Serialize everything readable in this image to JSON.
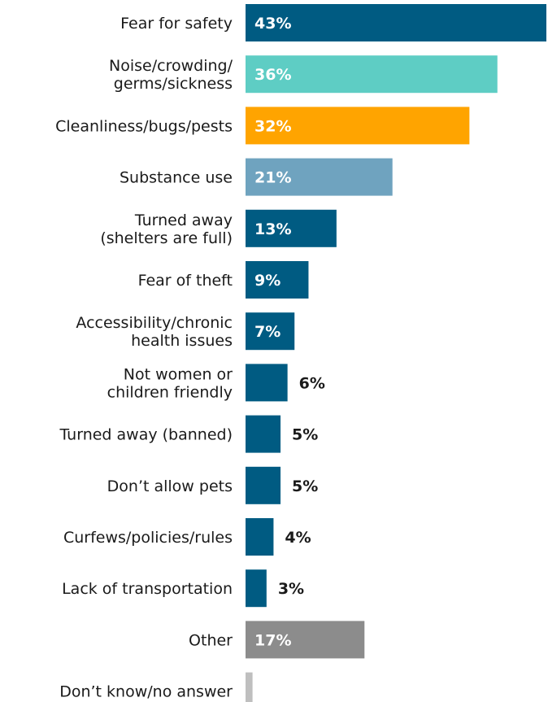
{
  "chart_data": {
    "type": "bar",
    "orientation": "horizontal",
    "title": "",
    "xlabel": "",
    "ylabel": "",
    "grid": false,
    "xlim": [
      0,
      43
    ],
    "categories": [
      "Fear for safety",
      "Noise/crowding/\ngerms/sickness",
      "Cleanliness/bugs/pests",
      "Substance use",
      "Turned away\n(shelters are full)",
      "Fear of theft",
      "Accessibility/chronic\nhealth issues",
      "Not women or\nchildren friendly",
      "Turned away (banned)",
      "Don’t allow pets",
      "Curfews/policies/rules",
      "Lack of transportation",
      "Other",
      "Don’t know/no answer"
    ],
    "values": [
      43,
      36,
      32,
      21,
      13,
      9,
      7,
      6,
      5,
      5,
      4,
      3,
      17,
      1
    ],
    "value_labels": [
      "43%",
      "36%",
      "32%",
      "21%",
      "13%",
      "9%",
      "7%",
      "6%",
      "5%",
      "5%",
      "4%",
      "3%",
      "17%",
      ""
    ],
    "colors": [
      "#005b82",
      "#5ecdc4",
      "#ffa400",
      "#6fa3bf",
      "#005b82",
      "#005b82",
      "#005b82",
      "#005b82",
      "#005b82",
      "#005b82",
      "#005b82",
      "#005b82",
      "#8c8c8c",
      "#bfbfbf"
    ]
  }
}
